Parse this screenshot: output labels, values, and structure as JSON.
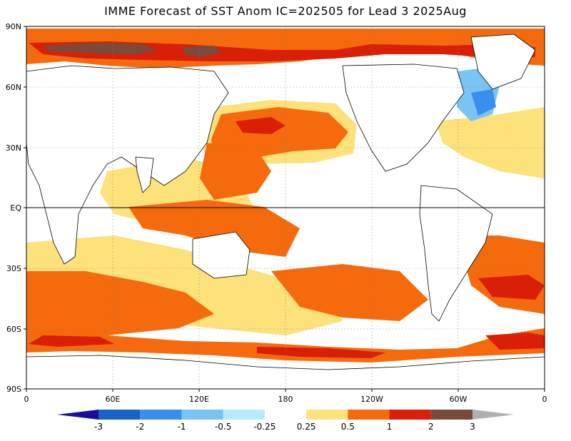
{
  "title": "IMME Forecast of SST Anom IC=202505 for Lead 3 2025Aug",
  "y_axis": {
    "ticks": [
      "90N",
      "60N",
      "30N",
      "EQ",
      "30S",
      "60S",
      "90S"
    ]
  },
  "x_axis": {
    "ticks": [
      "0",
      "60E",
      "120E",
      "180",
      "120W",
      "60W",
      "0"
    ]
  },
  "colorbar": {
    "labels": [
      "-3",
      "-2",
      "-1",
      "-0.5",
      "-0.25",
      "0.25",
      "0.5",
      "1",
      "2",
      "3"
    ],
    "colors": [
      "#1a0c9e",
      "#1763c8",
      "#3a8ef0",
      "#79c3f5",
      "#b5ecfb",
      "#ffffff",
      "#fde17a",
      "#f46a0c",
      "#d91f08",
      "#7a4a3a",
      "#b0b0b0"
    ]
  },
  "palette": {
    "ocean_neutral": "#ffffff",
    "warm_light": "#fde17a",
    "warm_mid": "#f46a0c",
    "warm_strong": "#d91f08",
    "warm_extreme": "#7a4a3a",
    "cool_light": "#b5ecfb",
    "cool_mid": "#79c3f5",
    "cool_strong": "#3a8ef0"
  }
}
